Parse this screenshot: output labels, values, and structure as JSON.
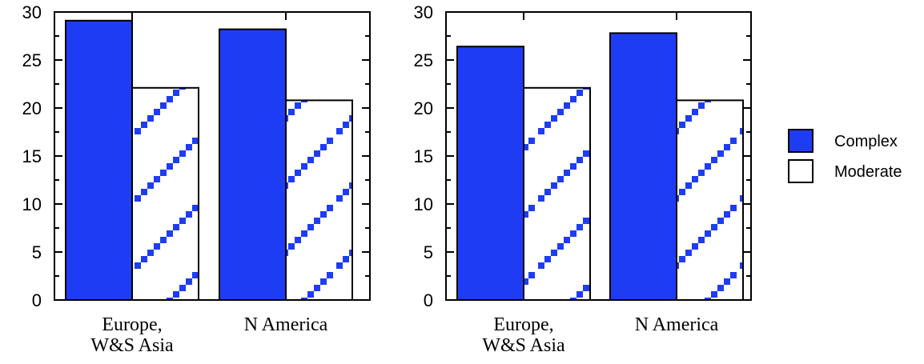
{
  "chart_data": [
    {
      "type": "bar",
      "categories": [
        [
          "Europe,",
          "W&S Asia"
        ],
        [
          "N America"
        ]
      ],
      "series": [
        {
          "name": "Complex",
          "values": [
            29.1,
            28.2
          ]
        },
        {
          "name": "Moderate",
          "values": [
            22.1,
            20.8
          ]
        }
      ],
      "ylim": [
        0,
        30
      ],
      "yticks": [
        0,
        5,
        10,
        15,
        20,
        25,
        30
      ],
      "title": "",
      "xlabel": "",
      "ylabel": ""
    },
    {
      "type": "bar",
      "categories": [
        [
          "Europe,",
          "W&S Asia"
        ],
        [
          "N America"
        ]
      ],
      "series": [
        {
          "name": "Complex",
          "values": [
            26.4,
            27.8
          ]
        },
        {
          "name": "Moderate",
          "values": [
            22.1,
            20.8
          ]
        }
      ],
      "ylim": [
        0,
        30
      ],
      "yticks": [
        0,
        5,
        10,
        15,
        20,
        25,
        30
      ],
      "title": "",
      "xlabel": "",
      "ylabel": ""
    }
  ],
  "legend": {
    "placement": "right",
    "items": [
      {
        "label": "Complex",
        "style": "solid"
      },
      {
        "label": "Moderate",
        "style": "hatched"
      }
    ]
  },
  "colors": {
    "complex_fill": "#1f3cf5",
    "moderate_fill": "#ffffff",
    "hatch": "#1f3cf5",
    "axis": "#000000"
  }
}
